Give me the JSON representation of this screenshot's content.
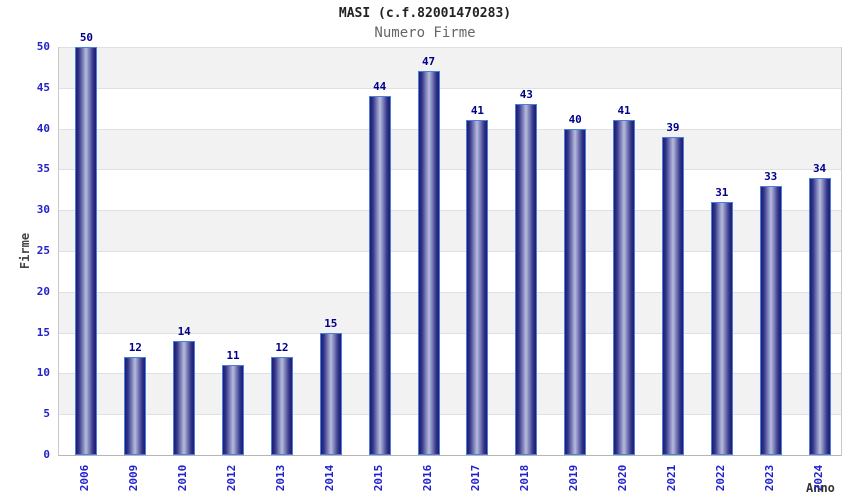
{
  "chart_data": {
    "type": "bar",
    "title": "MASI (c.f.82001470283)",
    "subtitle": "Numero Firme",
    "xlabel": "Anno",
    "ylabel": "Firme",
    "categories": [
      "2006",
      "2009",
      "2010",
      "2012",
      "2013",
      "2014",
      "2015",
      "2016",
      "2017",
      "2018",
      "2019",
      "2020",
      "2021",
      "2022",
      "2023",
      "2024"
    ],
    "values": [
      50,
      12,
      14,
      11,
      12,
      15,
      44,
      47,
      41,
      43,
      40,
      41,
      39,
      31,
      33,
      34
    ],
    "ylim": [
      0,
      50
    ],
    "ytick_step": 5,
    "grid": "horizontal-bands-alternating",
    "legend": "none",
    "bar_value_labels": true,
    "colors": {
      "bar_dark": "#1b1b72",
      "bar_light": "#b7bcdd",
      "bar_border": "#4a7fe0",
      "value_label": "#00008b",
      "tick_label": "#2222cc",
      "band_gray": "#f2f2f2",
      "gridline": "#e0e0e0",
      "axis": "#c9c9c9",
      "axis_bottom": "#b5b5b5",
      "title": "#222222",
      "subtitle": "#666666",
      "axis_title": "#444444",
      "xlabel": "#333333",
      "background": "#ffffff"
    }
  }
}
